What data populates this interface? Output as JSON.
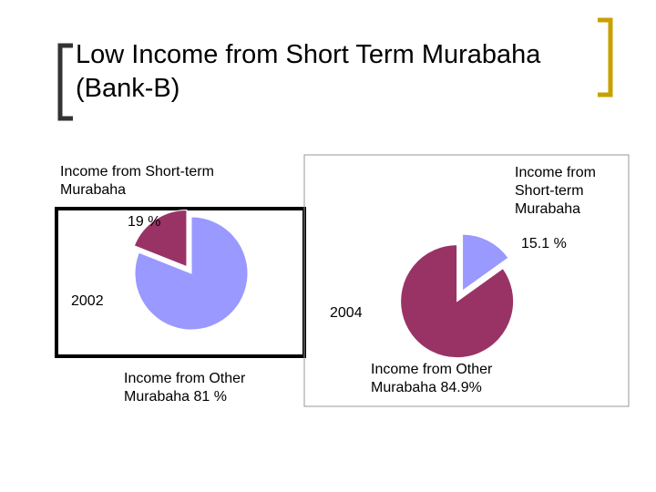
{
  "title": "Low Income from Short Term Murabaha (Bank-B)",
  "chart_data": [
    {
      "type": "pie",
      "label": "2002",
      "categories": [
        "Income from Short-term Murabaha",
        "Income from Other Murabaha"
      ],
      "values": [
        19,
        81
      ],
      "value_labels": [
        "19 %",
        "81 %"
      ],
      "colors": [
        "#993366",
        "#9999ff"
      ]
    },
    {
      "type": "pie",
      "label": "2004",
      "categories": [
        "Income from Short-term Murabaha",
        "Income from Other Murabaha"
      ],
      "values": [
        15.1,
        84.9
      ],
      "value_labels": [
        "15.1 %",
        "84.9%"
      ],
      "colors": [
        "#9999ff",
        "#993366"
      ]
    }
  ]
}
